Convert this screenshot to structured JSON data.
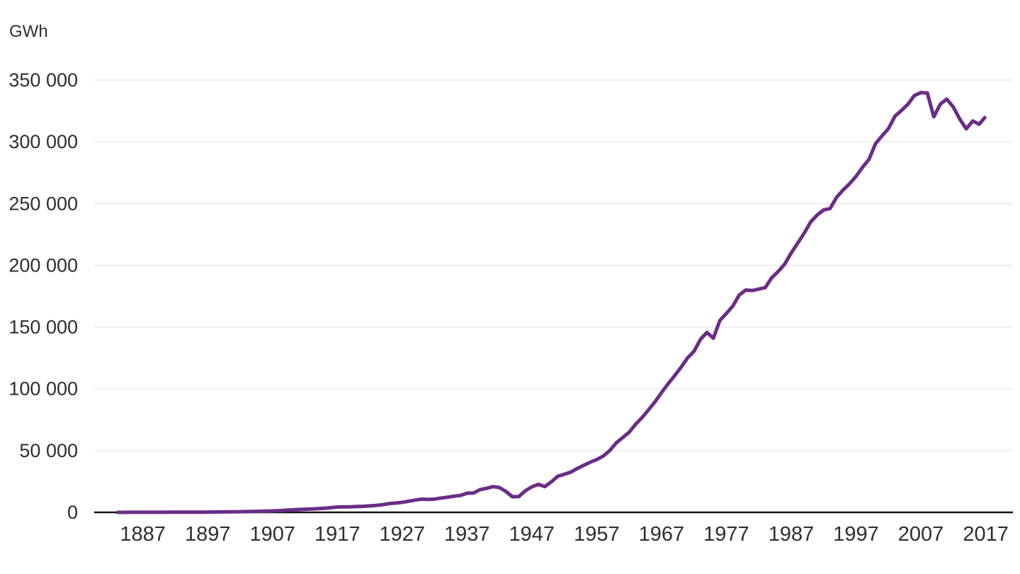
{
  "page": {
    "background_color": "#ffffff"
  },
  "header": {
    "unit_label": "GWh"
  },
  "chart_data": {
    "type": "line",
    "title": "",
    "xlabel": "",
    "ylabel": "GWh",
    "legend": "none",
    "grid": "horizontal-only",
    "line_color": "#692d87",
    "grid_color": "#e0e0e0",
    "axis_color": "#141414",
    "text_color": "#2e2e2e",
    "xlim": [
      1879.5,
      2021.2
    ],
    "ylim": [
      0,
      350000
    ],
    "x_start_year": 1883,
    "x_step_years": 1,
    "x_tick_years": [
      1887,
      1897,
      1907,
      1917,
      1927,
      1937,
      1947,
      1957,
      1967,
      1977,
      1987,
      1997,
      2007,
      2017
    ],
    "y_ticks": [
      {
        "value": 0,
        "label": "0"
      },
      {
        "value": 50000,
        "label": "50 000"
      },
      {
        "value": 100000,
        "label": "100 000"
      },
      {
        "value": 150000,
        "label": "150 000"
      },
      {
        "value": 200000,
        "label": "200 000"
      },
      {
        "value": 250000,
        "label": "250 000"
      },
      {
        "value": 300000,
        "label": "300 000"
      },
      {
        "value": 350000,
        "label": "350 000"
      }
    ],
    "values": [
      10,
      20,
      30,
      40,
      50,
      60,
      70,
      85,
      100,
      115,
      130,
      150,
      170,
      200,
      230,
      270,
      320,
      380,
      450,
      530,
      620,
      720,
      850,
      1000,
      1150,
      1400,
      1700,
      2000,
      2300,
      2550,
      2750,
      3000,
      3300,
      3800,
      4300,
      4500,
      4400,
      4700,
      4900,
      5200,
      5600,
      6200,
      7100,
      7500,
      8100,
      9000,
      9900,
      10700,
      10500,
      10800,
      11600,
      12300,
      13100,
      13700,
      15500,
      15600,
      18400,
      19400,
      20800,
      20100,
      16900,
      12600,
      12800,
      17500,
      20600,
      22700,
      20800,
      24700,
      29200,
      30800,
      32600,
      35500,
      38100,
      40600,
      42700,
      45500,
      49900,
      56200,
      60500,
      64800,
      71300,
      76700,
      83000,
      89500,
      96900,
      104000,
      110500,
      117400,
      124900,
      130300,
      140000,
      145700,
      141000,
      155400,
      161000,
      167000,
      176000,
      180000,
      179600,
      180800,
      182000,
      190000,
      195000,
      201000,
      210000,
      218000,
      226000,
      235100,
      240700,
      244800,
      246000,
      255000,
      261000,
      266000,
      272000,
      279300,
      285800,
      298500,
      304800,
      310700,
      320700,
      325400,
      330400,
      337500,
      339900,
      339500,
      320300,
      330500,
      334600,
      328200,
      318500,
      310500,
      316900,
      314300,
      320500
    ]
  }
}
